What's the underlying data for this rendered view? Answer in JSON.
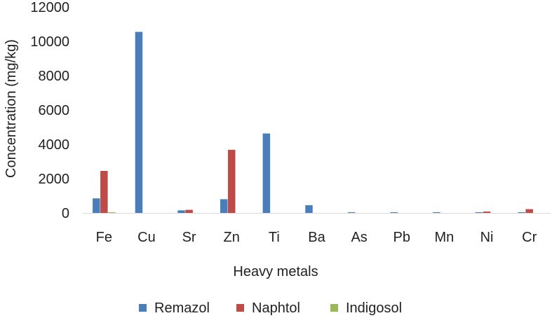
{
  "chart_data": {
    "type": "bar",
    "title": "",
    "xlabel": "Heavy metals",
    "ylabel": "Concentration (mg/kg)",
    "ylim": [
      0,
      12000
    ],
    "yticks": [
      0,
      2000,
      4000,
      6000,
      8000,
      10000,
      12000
    ],
    "yticks_text": [
      "0",
      "2000",
      "4000",
      "6000",
      "8000",
      "10000",
      "12000"
    ],
    "grid": false,
    "legend_position": "bottom",
    "categories": [
      "Fe",
      "Cu",
      "Sr",
      "Zn",
      "Ti",
      "Ba",
      "As",
      "Pb",
      "Mn",
      "Ni",
      "Cr"
    ],
    "series": [
      {
        "name": "Remazol",
        "color": "#4a7ebb",
        "values": [
          850,
          10550,
          150,
          800,
          4630,
          450,
          5,
          5,
          10,
          10,
          15
        ]
      },
      {
        "name": "Naphtol",
        "color": "#be4b48",
        "values": [
          2450,
          0,
          180,
          3680,
          0,
          0,
          0,
          0,
          0,
          80,
          220
        ]
      },
      {
        "name": "Indigosol",
        "color": "#98b954",
        "values": [
          40,
          0,
          0,
          0,
          0,
          0,
          0,
          0,
          0,
          0,
          0
        ]
      }
    ]
  }
}
